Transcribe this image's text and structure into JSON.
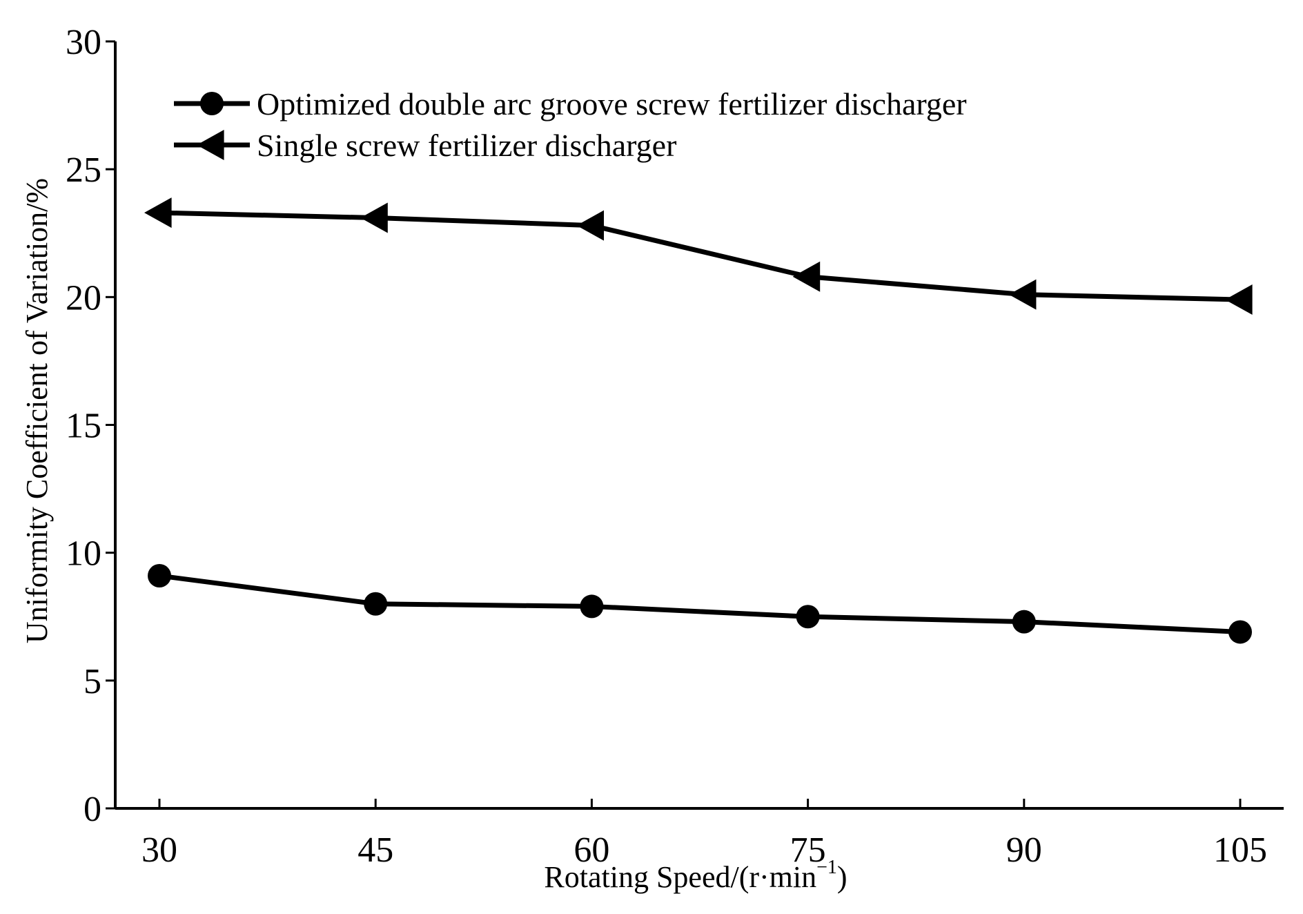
{
  "chart_data": {
    "type": "line",
    "title": "",
    "xlabel": "Rotating Speed/(r·min",
    "xlabel_sup": "−1",
    "xlabel_close": ")",
    "ylabel": "Uniformity Coefficient of Variation/%",
    "x": [
      30,
      45,
      60,
      75,
      90,
      105
    ],
    "x_tick_labels": [
      "30",
      "45",
      "60",
      "75",
      "90",
      "105"
    ],
    "ylim": [
      0,
      30
    ],
    "y_ticks": [
      0,
      5,
      10,
      15,
      20,
      25,
      30
    ],
    "y_tick_labels": [
      "0",
      "5",
      "10",
      "15",
      "20",
      "25",
      "30"
    ],
    "grid": false,
    "legend_position": "top-left",
    "series": [
      {
        "name": "Optimized double arc groove screw fertilizer discharger",
        "marker": "circle",
        "values": [
          9.1,
          8.0,
          7.9,
          7.5,
          7.3,
          6.9
        ]
      },
      {
        "name": "Single screw fertilizer discharger",
        "marker": "triangle-left",
        "values": [
          23.3,
          23.1,
          22.8,
          20.8,
          20.1,
          19.9
        ]
      }
    ]
  }
}
